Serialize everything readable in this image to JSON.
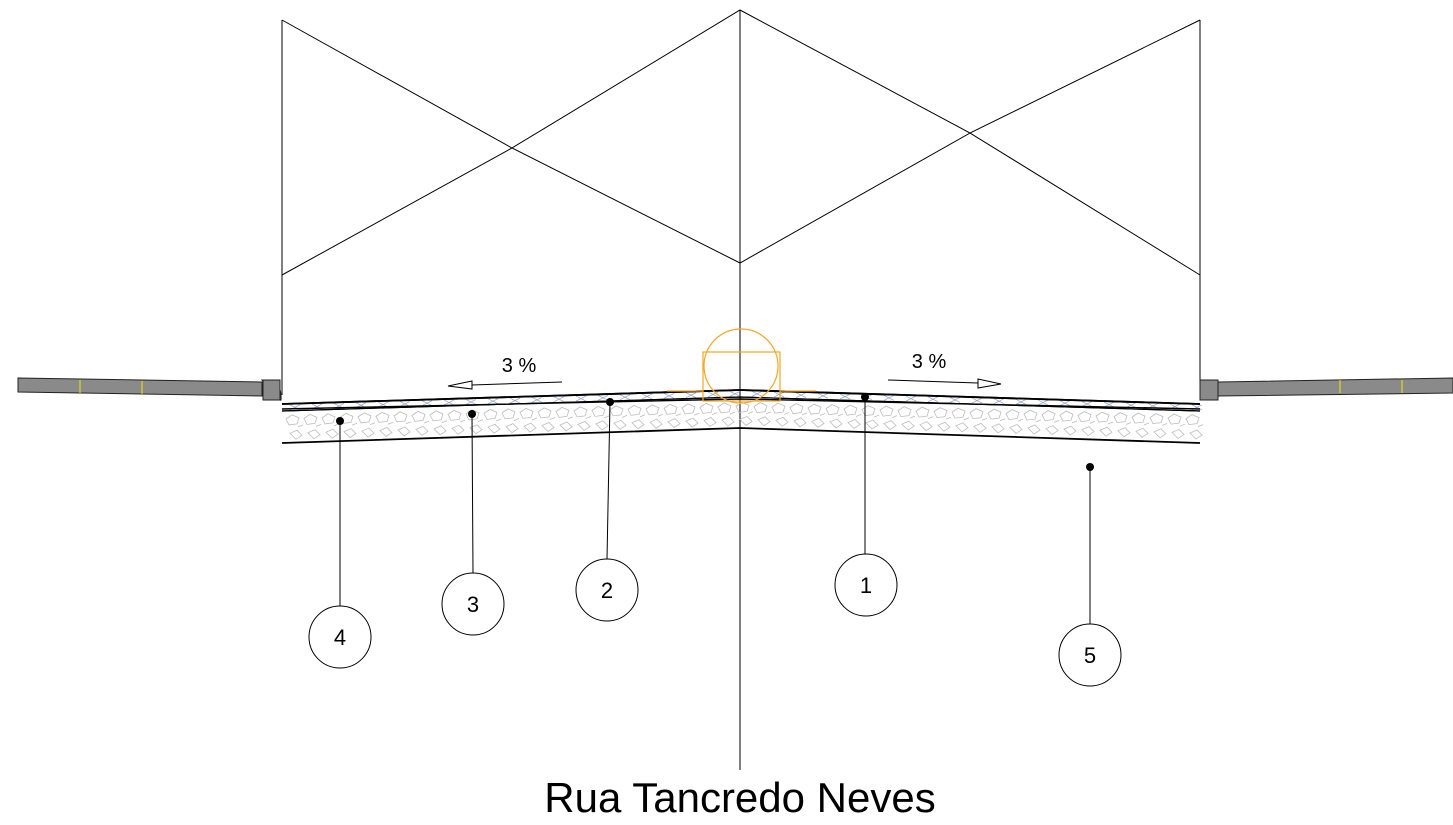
{
  "title": "Rua Tancredo Neves",
  "slopes": [
    {
      "label": "3 %",
      "direction": "left"
    },
    {
      "label": "3 %",
      "direction": "right"
    }
  ],
  "callouts": [
    {
      "number": "1"
    },
    {
      "number": "2"
    },
    {
      "number": "3"
    },
    {
      "number": "4"
    },
    {
      "number": "5"
    }
  ],
  "colors": {
    "lines": "#000000",
    "curb": "#8a8a8a",
    "centerline_marker": "#f5a623",
    "hatch": "#bcbcbc",
    "subbase_hatch": "#8ea0c8",
    "curb_mark": "#f2e600"
  }
}
